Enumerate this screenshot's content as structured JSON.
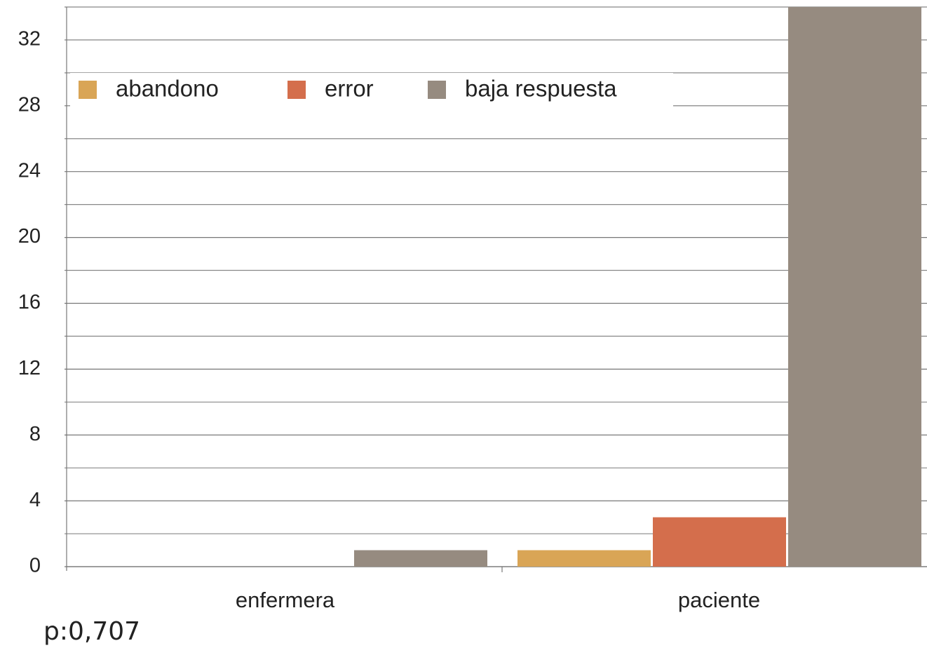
{
  "chart_data": {
    "type": "bar",
    "categories": [
      "enfermera",
      "paciente"
    ],
    "series": [
      {
        "name": "abandono",
        "color": "#d9a556",
        "values": [
          0,
          1
        ]
      },
      {
        "name": "error",
        "color": "#d46e4c",
        "values": [
          0,
          3
        ]
      },
      {
        "name": "baja respuesta",
        "color": "#968b80",
        "values": [
          1,
          34
        ]
      }
    ],
    "ylim": [
      0,
      34
    ],
    "yticks": [
      0,
      4,
      8,
      12,
      16,
      20,
      24,
      28,
      32
    ],
    "minor_yticks": [
      2,
      6,
      10,
      14,
      18,
      22,
      26,
      30,
      34
    ],
    "grid": true,
    "legend": "top-left",
    "annotation": "p:0,707"
  }
}
